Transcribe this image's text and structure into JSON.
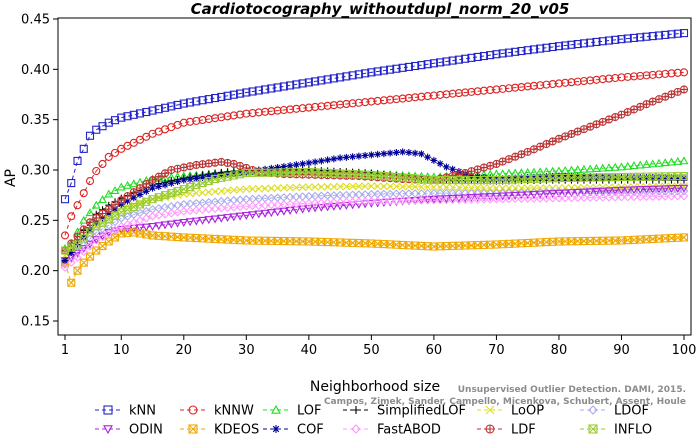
{
  "chart_data": {
    "type": "line",
    "title": "Cardiotocography_withoutdupl_norm_20_v05",
    "xlabel": "Neighborhood size",
    "ylabel": "AP",
    "xlim": [
      1,
      100
    ],
    "ylim": [
      0.15,
      0.45
    ],
    "xticks": [
      1,
      10,
      20,
      30,
      40,
      50,
      60,
      70,
      80,
      90,
      100
    ],
    "yticks": [
      0.15,
      0.2,
      0.25,
      0.3,
      0.35,
      0.4,
      0.45
    ],
    "ytick_labels": [
      "0.15",
      "0.20",
      "0.25",
      "0.30",
      "0.35",
      "0.40",
      "0.45"
    ],
    "grid": false,
    "legend_position": "bottom",
    "credit": "Campos, Zimek, Sander, Campello, Micenkova, Schubert, Assent, Houle",
    "credit_line1": "Unsupervised Outlier Detection. DAMI, 2015.",
    "series": [
      {
        "name": "kNN",
        "color": "#2222cc",
        "marker": "square",
        "points": [
          [
            1,
            0.271
          ],
          [
            2,
            0.287
          ],
          [
            3,
            0.309
          ],
          [
            4,
            0.321
          ],
          [
            5,
            0.334
          ],
          [
            6,
            0.34
          ],
          [
            8,
            0.347
          ],
          [
            10,
            0.352
          ],
          [
            15,
            0.359
          ],
          [
            20,
            0.366
          ],
          [
            30,
            0.377
          ],
          [
            40,
            0.387
          ],
          [
            50,
            0.397
          ],
          [
            60,
            0.406
          ],
          [
            70,
            0.415
          ],
          [
            80,
            0.423
          ],
          [
            90,
            0.43
          ],
          [
            100,
            0.436
          ]
        ]
      },
      {
        "name": "kNNW",
        "color": "#dd2222",
        "marker": "circle",
        "points": [
          [
            1,
            0.235
          ],
          [
            2,
            0.254
          ],
          [
            3,
            0.265
          ],
          [
            4,
            0.277
          ],
          [
            5,
            0.289
          ],
          [
            6,
            0.299
          ],
          [
            8,
            0.313
          ],
          [
            10,
            0.321
          ],
          [
            15,
            0.336
          ],
          [
            20,
            0.347
          ],
          [
            30,
            0.356
          ],
          [
            40,
            0.362
          ],
          [
            50,
            0.368
          ],
          [
            60,
            0.374
          ],
          [
            70,
            0.38
          ],
          [
            80,
            0.386
          ],
          [
            90,
            0.392
          ],
          [
            100,
            0.397
          ]
        ]
      },
      {
        "name": "LOF",
        "color": "#22dd22",
        "marker": "triangle-up",
        "points": [
          [
            1,
            0.222
          ],
          [
            2,
            0.227
          ],
          [
            4,
            0.25
          ],
          [
            6,
            0.265
          ],
          [
            8,
            0.276
          ],
          [
            10,
            0.283
          ],
          [
            15,
            0.291
          ],
          [
            20,
            0.294
          ],
          [
            25,
            0.296
          ],
          [
            30,
            0.298
          ],
          [
            40,
            0.298
          ],
          [
            50,
            0.296
          ],
          [
            60,
            0.293
          ],
          [
            70,
            0.296
          ],
          [
            80,
            0.299
          ],
          [
            90,
            0.303
          ],
          [
            100,
            0.309
          ]
        ]
      },
      {
        "name": "SimplifiedLOF",
        "color": "#000000",
        "marker": "plus",
        "points": [
          [
            1,
            0.209
          ],
          [
            2,
            0.22
          ],
          [
            4,
            0.24
          ],
          [
            6,
            0.256
          ],
          [
            8,
            0.265
          ],
          [
            10,
            0.272
          ],
          [
            15,
            0.285
          ],
          [
            20,
            0.292
          ],
          [
            25,
            0.297
          ],
          [
            30,
            0.3
          ],
          [
            40,
            0.3
          ],
          [
            50,
            0.297
          ],
          [
            60,
            0.29
          ],
          [
            70,
            0.289
          ],
          [
            80,
            0.29
          ],
          [
            90,
            0.29
          ],
          [
            100,
            0.29
          ]
        ]
      },
      {
        "name": "LoOP",
        "color": "#dddd22",
        "marker": "x",
        "points": [
          [
            1,
            0.215
          ],
          [
            3,
            0.228
          ],
          [
            6,
            0.245
          ],
          [
            10,
            0.262
          ],
          [
            15,
            0.271
          ],
          [
            20,
            0.276
          ],
          [
            30,
            0.281
          ],
          [
            40,
            0.283
          ],
          [
            50,
            0.284
          ],
          [
            60,
            0.283
          ],
          [
            70,
            0.282
          ],
          [
            80,
            0.282
          ],
          [
            90,
            0.283
          ],
          [
            100,
            0.284
          ]
        ]
      },
      {
        "name": "LDOF",
        "color": "#aaaaee",
        "marker": "diamond",
        "points": [
          [
            1,
            0.206
          ],
          [
            3,
            0.219
          ],
          [
            6,
            0.238
          ],
          [
            10,
            0.252
          ],
          [
            15,
            0.261
          ],
          [
            20,
            0.266
          ],
          [
            30,
            0.271
          ],
          [
            40,
            0.274
          ],
          [
            50,
            0.276
          ],
          [
            60,
            0.277
          ],
          [
            70,
            0.277
          ],
          [
            80,
            0.278
          ],
          [
            90,
            0.278
          ],
          [
            100,
            0.279
          ]
        ]
      },
      {
        "name": "ODIN",
        "color": "#aa22dd",
        "marker": "triangle-down",
        "points": [
          [
            1,
            0.21
          ],
          [
            2,
            0.213
          ],
          [
            4,
            0.222
          ],
          [
            6,
            0.231
          ],
          [
            8,
            0.238
          ],
          [
            10,
            0.241
          ],
          [
            15,
            0.244
          ],
          [
            20,
            0.248
          ],
          [
            30,
            0.255
          ],
          [
            40,
            0.262
          ],
          [
            50,
            0.267
          ],
          [
            60,
            0.271
          ],
          [
            70,
            0.274
          ],
          [
            80,
            0.277
          ],
          [
            90,
            0.28
          ],
          [
            100,
            0.282
          ]
        ]
      },
      {
        "name": "KDEOS",
        "color": "#f0a800",
        "marker": "square-x",
        "points": [
          [
            1,
            0.208
          ],
          [
            2,
            0.188
          ],
          [
            3,
            0.2
          ],
          [
            4,
            0.208
          ],
          [
            6,
            0.22
          ],
          [
            8,
            0.229
          ],
          [
            10,
            0.237
          ],
          [
            12,
            0.238
          ],
          [
            15,
            0.235
          ],
          [
            20,
            0.233
          ],
          [
            30,
            0.23
          ],
          [
            40,
            0.229
          ],
          [
            50,
            0.227
          ],
          [
            60,
            0.224
          ],
          [
            70,
            0.226
          ],
          [
            80,
            0.229
          ],
          [
            90,
            0.23
          ],
          [
            100,
            0.233
          ]
        ]
      },
      {
        "name": "COF",
        "color": "#000099",
        "marker": "asterisk",
        "points": [
          [
            1,
            0.21
          ],
          [
            3,
            0.226
          ],
          [
            6,
            0.248
          ],
          [
            10,
            0.266
          ],
          [
            15,
            0.282
          ],
          [
            20,
            0.29
          ],
          [
            30,
            0.298
          ],
          [
            40,
            0.307
          ],
          [
            45,
            0.312
          ],
          [
            50,
            0.315
          ],
          [
            55,
            0.318
          ],
          [
            58,
            0.316
          ],
          [
            62,
            0.303
          ],
          [
            66,
            0.294
          ],
          [
            70,
            0.291
          ],
          [
            80,
            0.294
          ],
          [
            90,
            0.293
          ],
          [
            100,
            0.292
          ]
        ]
      },
      {
        "name": "FastABOD",
        "color": "#ff99ff",
        "marker": "diamond",
        "points": [
          [
            1,
            0.203
          ],
          [
            3,
            0.213
          ],
          [
            6,
            0.23
          ],
          [
            10,
            0.244
          ],
          [
            15,
            0.254
          ],
          [
            20,
            0.259
          ],
          [
            30,
            0.264
          ],
          [
            40,
            0.267
          ],
          [
            50,
            0.269
          ],
          [
            60,
            0.27
          ],
          [
            70,
            0.271
          ],
          [
            80,
            0.272
          ],
          [
            90,
            0.273
          ],
          [
            100,
            0.274
          ]
        ]
      },
      {
        "name": "LDF",
        "color": "#bb3333",
        "marker": "circle-plus",
        "points": [
          [
            1,
            0.22
          ],
          [
            5,
            0.248
          ],
          [
            10,
            0.27
          ],
          [
            15,
            0.29
          ],
          [
            18,
            0.3
          ],
          [
            22,
            0.305
          ],
          [
            26,
            0.308
          ],
          [
            28,
            0.306
          ],
          [
            32,
            0.298
          ],
          [
            36,
            0.296
          ],
          [
            42,
            0.295
          ],
          [
            48,
            0.294
          ],
          [
            55,
            0.291
          ],
          [
            60,
            0.29
          ],
          [
            65,
            0.297
          ],
          [
            70,
            0.306
          ],
          [
            75,
            0.318
          ],
          [
            80,
            0.331
          ],
          [
            85,
            0.343
          ],
          [
            90,
            0.355
          ],
          [
            95,
            0.368
          ],
          [
            100,
            0.38
          ]
        ]
      },
      {
        "name": "INFLO",
        "color": "#99cc33",
        "marker": "square-x",
        "points": [
          [
            1,
            0.22
          ],
          [
            3,
            0.226
          ],
          [
            6,
            0.244
          ],
          [
            10,
            0.258
          ],
          [
            15,
            0.271
          ],
          [
            20,
            0.281
          ],
          [
            25,
            0.291
          ],
          [
            30,
            0.297
          ],
          [
            40,
            0.298
          ],
          [
            50,
            0.295
          ],
          [
            60,
            0.29
          ],
          [
            70,
            0.29
          ],
          [
            80,
            0.292
          ],
          [
            90,
            0.293
          ],
          [
            100,
            0.294
          ]
        ]
      }
    ]
  }
}
